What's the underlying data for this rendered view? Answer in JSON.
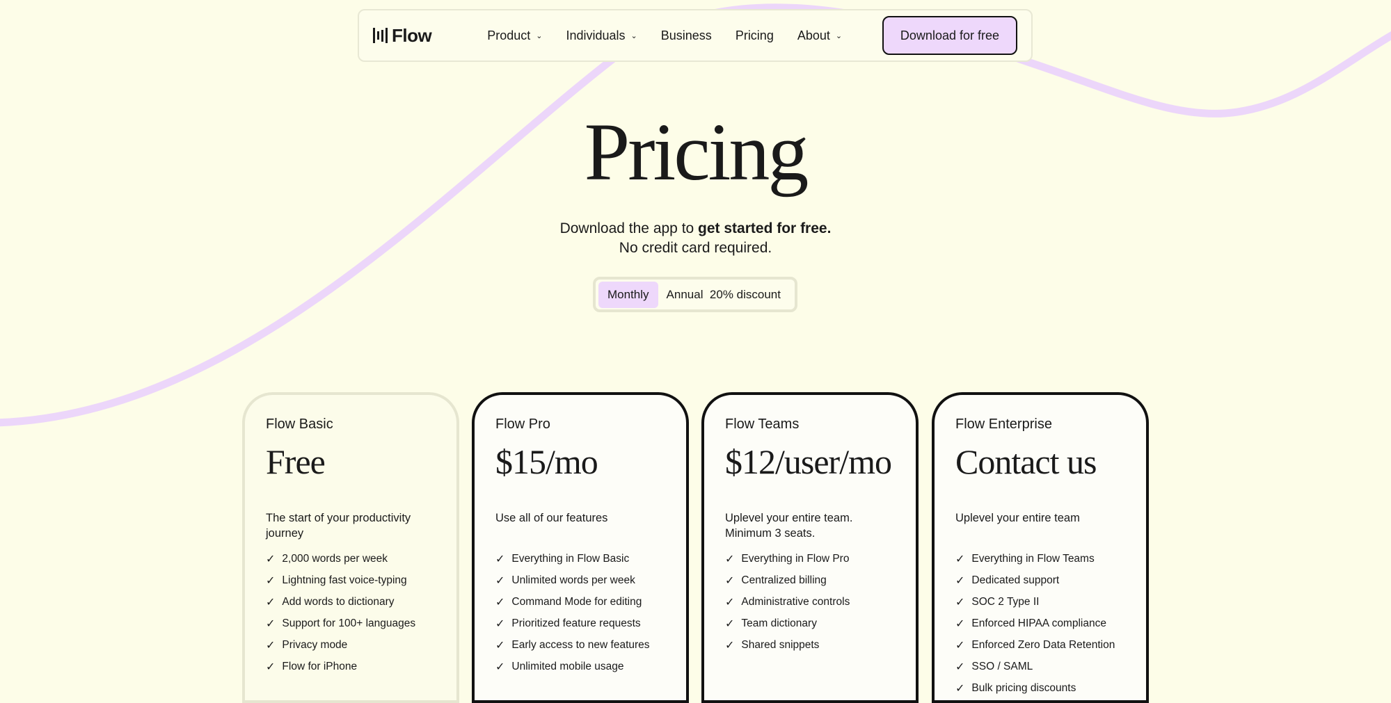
{
  "colors": {
    "background": "#fdfde8",
    "accent": "#eed8fb",
    "wave": "#ecd6fa"
  },
  "nav": {
    "logo": "Flow",
    "logo_icon": "sound-bars-icon",
    "items": [
      {
        "label": "Product",
        "dropdown": true
      },
      {
        "label": "Individuals",
        "dropdown": true
      },
      {
        "label": "Business",
        "dropdown": false
      },
      {
        "label": "Pricing",
        "dropdown": false
      },
      {
        "label": "About",
        "dropdown": true
      }
    ],
    "cta": "Download for free"
  },
  "hero": {
    "title": "Pricing",
    "subtitle_pre": "Download the app to ",
    "subtitle_bold": "get started for free.",
    "subtitle_line2": "No credit card required."
  },
  "billing_toggle": {
    "monthly": "Monthly",
    "annual": "Annual",
    "discount": "20% discount",
    "selected": "Monthly"
  },
  "plans": [
    {
      "name": "Flow Basic",
      "price": "Free",
      "description": "The start of your productivity journey",
      "features": [
        "2,000 words per week",
        "Lightning fast voice-typing",
        "Add words to dictionary",
        "Support for 100+ languages",
        "Privacy mode",
        "Flow for iPhone"
      ]
    },
    {
      "name": "Flow Pro",
      "price": "$15/mo",
      "description": "Use all of our features",
      "features": [
        "Everything in Flow Basic",
        "Unlimited words per week",
        "Command Mode for editing",
        "Prioritized feature requests",
        "Early access to new features",
        "Unlimited mobile usage"
      ]
    },
    {
      "name": "Flow Teams",
      "price": "$12/user/mo",
      "description": "Uplevel your entire team. Minimum 3 seats.",
      "features": [
        "Everything in Flow Pro",
        "Centralized billing",
        "Administrative controls",
        "Team dictionary",
        "Shared snippets"
      ]
    },
    {
      "name": "Flow Enterprise",
      "price": "Contact us",
      "description": "Uplevel your entire team",
      "features": [
        "Everything in Flow Teams",
        "Dedicated support",
        "SOC 2 Type II",
        "Enforced HIPAA compliance",
        "Enforced Zero Data Retention",
        "SSO / SAML",
        "Bulk pricing discounts"
      ]
    }
  ]
}
